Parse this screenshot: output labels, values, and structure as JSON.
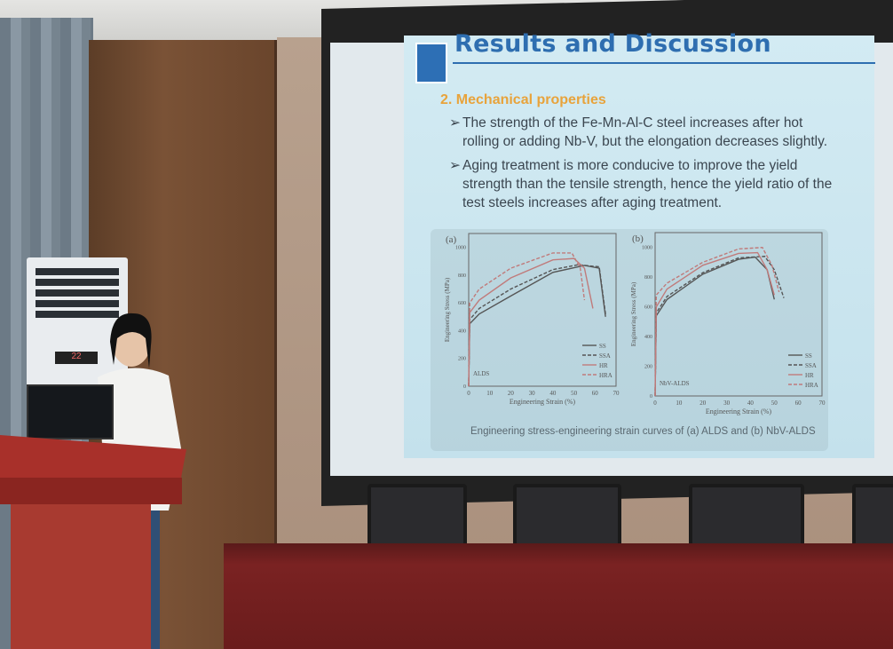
{
  "slide": {
    "title": "Results and Discussion",
    "section": "2. Mechanical properties",
    "bullets": [
      "The strength of the Fe-Mn-Al-C steel increases after hot rolling or adding Nb-V, but the elongation decreases slightly.",
      "Aging treatment is more conducive to improve the yield strength than the tensile strength, hence the yield ratio of the test steels increases after aging treatment."
    ],
    "caption": "Engineering stress-engineering strain curves of (a) ALDS and (b) NbV-ALDS",
    "bullet_icon": "arrow-right-icon"
  },
  "ac_display": "22",
  "colors": {
    "slide_title": "#2e6eb0",
    "section": "#e8a33b",
    "podium": "#9a2a22",
    "hr_series": "#c07b7b",
    "ss_series": "#555555"
  },
  "chart_data": [
    {
      "type": "line",
      "panel": "(a)",
      "label": "ALDS",
      "xlabel": "Engineering Strain (%)",
      "ylabel": "Engineering Stress (MPa)",
      "xlim": [
        0,
        70
      ],
      "ylim": [
        0,
        1100
      ],
      "xticks": [
        0,
        10,
        20,
        30,
        40,
        50,
        60,
        70
      ],
      "yticks": [
        0,
        200,
        400,
        600,
        800,
        1000
      ],
      "legend": "bottom-right",
      "series": [
        {
          "name": "SS",
          "dash": false,
          "points": [
            [
              0,
              0
            ],
            [
              0.5,
              450
            ],
            [
              5,
              520
            ],
            [
              20,
              650
            ],
            [
              40,
              820
            ],
            [
              55,
              870
            ],
            [
              62,
              850
            ],
            [
              65,
              500
            ]
          ]
        },
        {
          "name": "SSA",
          "dash": true,
          "points": [
            [
              0,
              0
            ],
            [
              0.5,
              480
            ],
            [
              5,
              560
            ],
            [
              20,
              700
            ],
            [
              40,
              840
            ],
            [
              52,
              875
            ],
            [
              62,
              860
            ],
            [
              65,
              520
            ]
          ]
        },
        {
          "name": "HR",
          "dash": false,
          "points": [
            [
              0,
              0
            ],
            [
              0.5,
              530
            ],
            [
              5,
              620
            ],
            [
              20,
              780
            ],
            [
              40,
              910
            ],
            [
              50,
              920
            ],
            [
              55,
              850
            ],
            [
              59,
              560
            ]
          ]
        },
        {
          "name": "HRA",
          "dash": true,
          "points": [
            [
              0,
              0
            ],
            [
              0.5,
              600
            ],
            [
              5,
              700
            ],
            [
              20,
              850
            ],
            [
              40,
              960
            ],
            [
              49,
              960
            ],
            [
              53,
              850
            ],
            [
              55,
              620
            ]
          ]
        }
      ]
    },
    {
      "type": "line",
      "panel": "(b)",
      "label": "NbV-ALDS",
      "xlabel": "Engineering Strain (%)",
      "ylabel": "Engineering Stress (MPa)",
      "xlim": [
        0,
        70
      ],
      "ylim": [
        0,
        1100
      ],
      "xticks": [
        0,
        10,
        20,
        30,
        40,
        50,
        60,
        70
      ],
      "yticks": [
        0,
        200,
        400,
        600,
        800,
        1000
      ],
      "legend": "bottom-right",
      "series": [
        {
          "name": "SS",
          "dash": false,
          "points": [
            [
              0,
              0
            ],
            [
              0.5,
              540
            ],
            [
              5,
              650
            ],
            [
              20,
              820
            ],
            [
              35,
              920
            ],
            [
              42,
              935
            ],
            [
              47,
              850
            ],
            [
              50,
              650
            ]
          ]
        },
        {
          "name": "SSA",
          "dash": true,
          "points": [
            [
              0,
              0
            ],
            [
              0.5,
              560
            ],
            [
              5,
              670
            ],
            [
              20,
              830
            ],
            [
              35,
              930
            ],
            [
              46,
              940
            ],
            [
              50,
              850
            ],
            [
              54,
              660
            ]
          ]
        },
        {
          "name": "HR",
          "dash": false,
          "points": [
            [
              0,
              0
            ],
            [
              0.5,
              600
            ],
            [
              5,
              720
            ],
            [
              20,
              880
            ],
            [
              35,
              960
            ],
            [
              43,
              965
            ],
            [
              47,
              850
            ],
            [
              50,
              680
            ]
          ]
        },
        {
          "name": "HRA",
          "dash": true,
          "points": [
            [
              0,
              0
            ],
            [
              0.5,
              680
            ],
            [
              5,
              760
            ],
            [
              20,
              900
            ],
            [
              35,
              990
            ],
            [
              45,
              1000
            ],
            [
              49,
              880
            ],
            [
              52,
              700
            ]
          ]
        }
      ]
    }
  ]
}
